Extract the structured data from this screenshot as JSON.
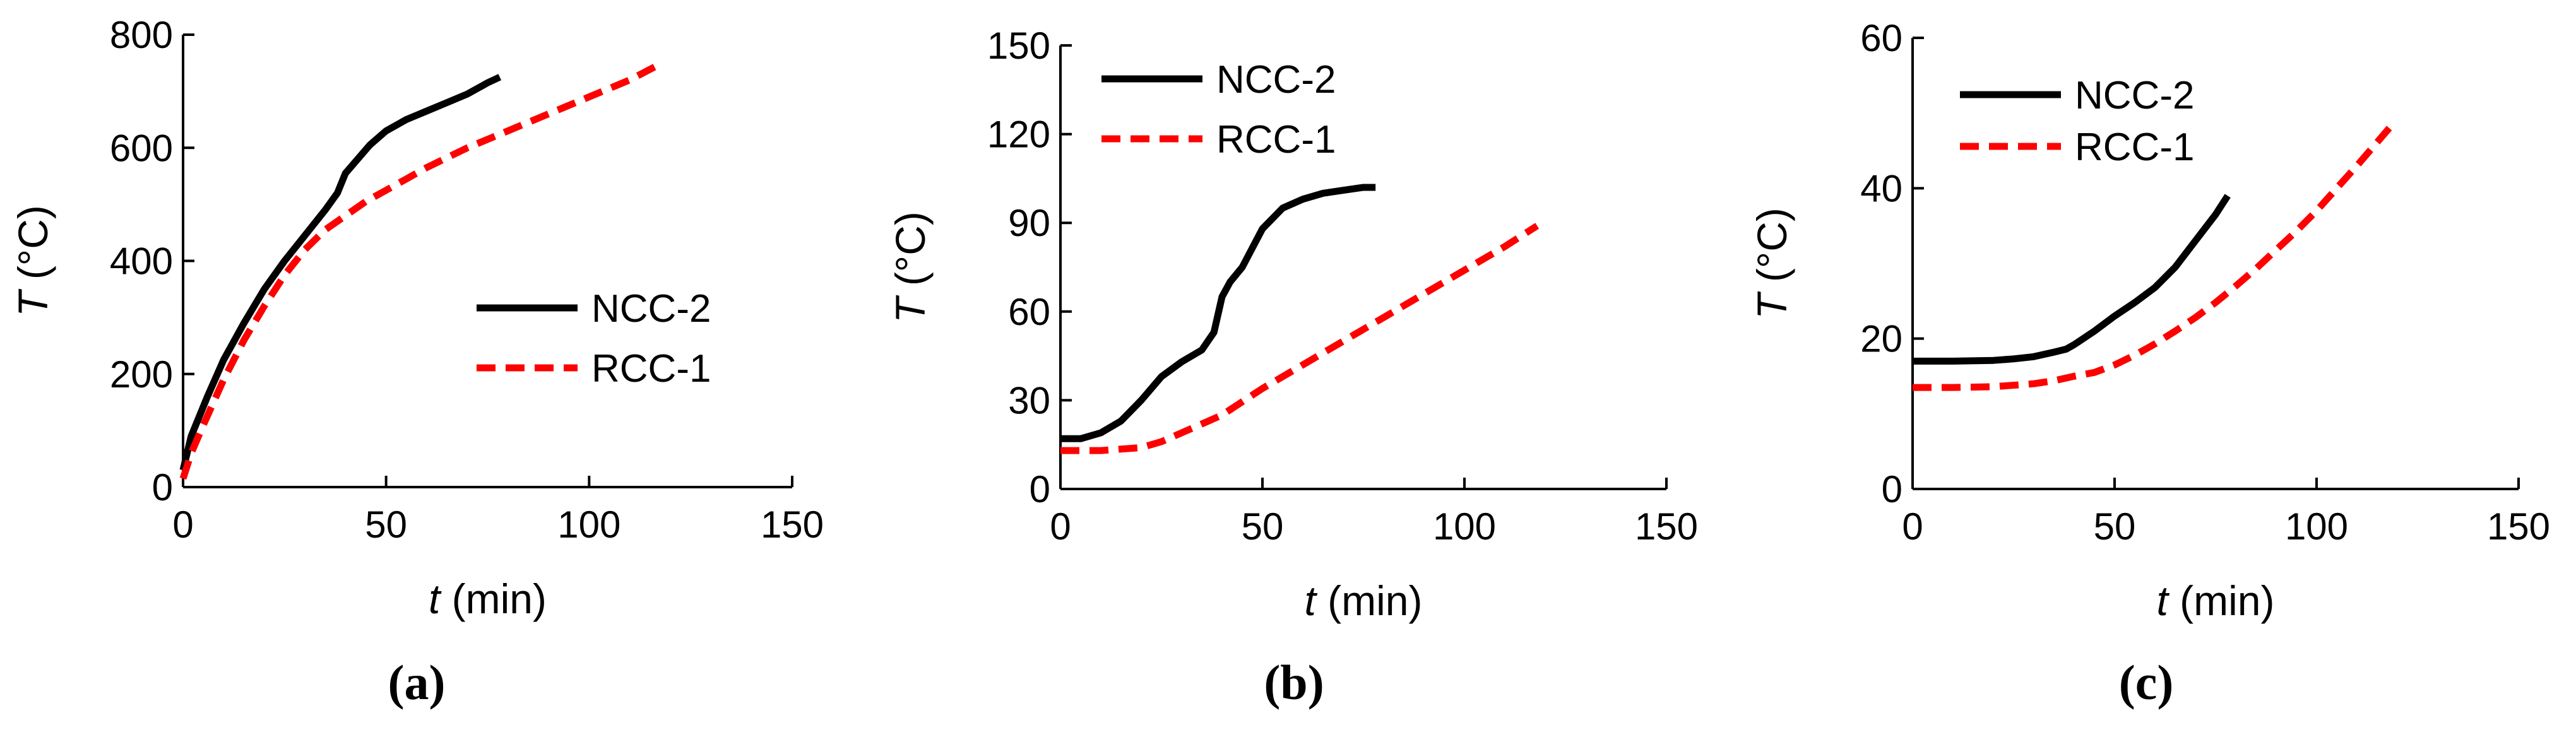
{
  "chart_data": [
    {
      "type": "line",
      "panel_label": "a",
      "xlabel_symbol": "t",
      "xlabel_unit": " (min)",
      "ylabel_symbol": "T",
      "ylabel_unit": " (°C)",
      "xlim": [
        0,
        150
      ],
      "ylim": [
        0,
        800
      ],
      "xticks": [
        0,
        50,
        100,
        150
      ],
      "yticks": [
        0,
        200,
        400,
        600,
        800
      ],
      "legend_position": "middle-right",
      "series": [
        {
          "name": "NCC-2",
          "color": "#000000",
          "style": "solid",
          "x": [
            0,
            2,
            6,
            10,
            15,
            20,
            25,
            30,
            35,
            38,
            40,
            43,
            46,
            50,
            55,
            60,
            65,
            70,
            75,
            78
          ],
          "y": [
            30,
            90,
            160,
            225,
            290,
            350,
            400,
            445,
            490,
            520,
            555,
            580,
            605,
            630,
            650,
            665,
            680,
            695,
            715,
            725
          ]
        },
        {
          "name": "RCC-1",
          "color": "#ff0000",
          "style": "dashed",
          "x": [
            0,
            2,
            5,
            10,
            15,
            20,
            25,
            30,
            35,
            40,
            45,
            50,
            60,
            70,
            80,
            90,
            100,
            110,
            118
          ],
          "y": [
            15,
            60,
            110,
            190,
            260,
            320,
            375,
            420,
            455,
            480,
            505,
            525,
            565,
            600,
            630,
            660,
            690,
            720,
            750
          ]
        }
      ]
    },
    {
      "type": "line",
      "panel_label": "b",
      "xlabel_symbol": "t",
      "xlabel_unit": " (min)",
      "ylabel_symbol": "T",
      "ylabel_unit": " (°C)",
      "xlim": [
        0,
        150
      ],
      "ylim": [
        0,
        150
      ],
      "xticks": [
        0,
        50,
        100,
        150
      ],
      "yticks": [
        0,
        30,
        60,
        90,
        120,
        150
      ],
      "legend_position": "top-left",
      "series": [
        {
          "name": "NCC-2",
          "color": "#000000",
          "style": "solid",
          "x": [
            0,
            5,
            10,
            15,
            20,
            25,
            30,
            35,
            38,
            40,
            42,
            45,
            50,
            55,
            60,
            65,
            70,
            75,
            78
          ],
          "y": [
            17,
            17,
            19,
            23,
            30,
            38,
            43,
            47,
            53,
            65,
            70,
            75,
            88,
            95,
            98,
            100,
            101,
            102,
            102
          ]
        },
        {
          "name": "RCC-1",
          "color": "#ff0000",
          "style": "dashed",
          "x": [
            0,
            10,
            20,
            25,
            30,
            40,
            50,
            60,
            70,
            80,
            90,
            100,
            110,
            118
          ],
          "y": [
            13,
            13,
            14,
            16,
            19,
            25,
            34,
            42,
            50,
            58,
            66,
            74,
            82,
            89
          ]
        }
      ]
    },
    {
      "type": "line",
      "panel_label": "c",
      "xlabel_symbol": "t",
      "xlabel_unit": " (min)",
      "ylabel_symbol": "T",
      "ylabel_unit": " (°C)",
      "xlim": [
        0,
        150
      ],
      "ylim": [
        0,
        60
      ],
      "xticks": [
        0,
        50,
        100,
        150
      ],
      "yticks": [
        0,
        20,
        40,
        60
      ],
      "legend_position": "top-left",
      "series": [
        {
          "name": "NCC-2",
          "color": "#000000",
          "style": "solid",
          "x": [
            0,
            10,
            20,
            25,
            30,
            35,
            38,
            40,
            45,
            50,
            55,
            60,
            65,
            70,
            75,
            78
          ],
          "y": [
            17,
            17,
            17.1,
            17.3,
            17.6,
            18.2,
            18.6,
            19.2,
            21,
            23,
            24.8,
            26.8,
            29.5,
            33,
            36.5,
            39
          ]
        },
        {
          "name": "RCC-1",
          "color": "#ff0000",
          "style": "dashed",
          "x": [
            0,
            10,
            20,
            30,
            35,
            40,
            45,
            50,
            55,
            60,
            65,
            70,
            75,
            80,
            85,
            90,
            95,
            100,
            105,
            110,
            118
          ],
          "y": [
            13.5,
            13.5,
            13.6,
            14,
            14.4,
            15,
            15.5,
            16.5,
            17.8,
            19.3,
            21,
            22.8,
            24.8,
            27,
            29.3,
            31.8,
            34.3,
            37,
            40,
            43,
            48
          ]
        }
      ]
    }
  ]
}
